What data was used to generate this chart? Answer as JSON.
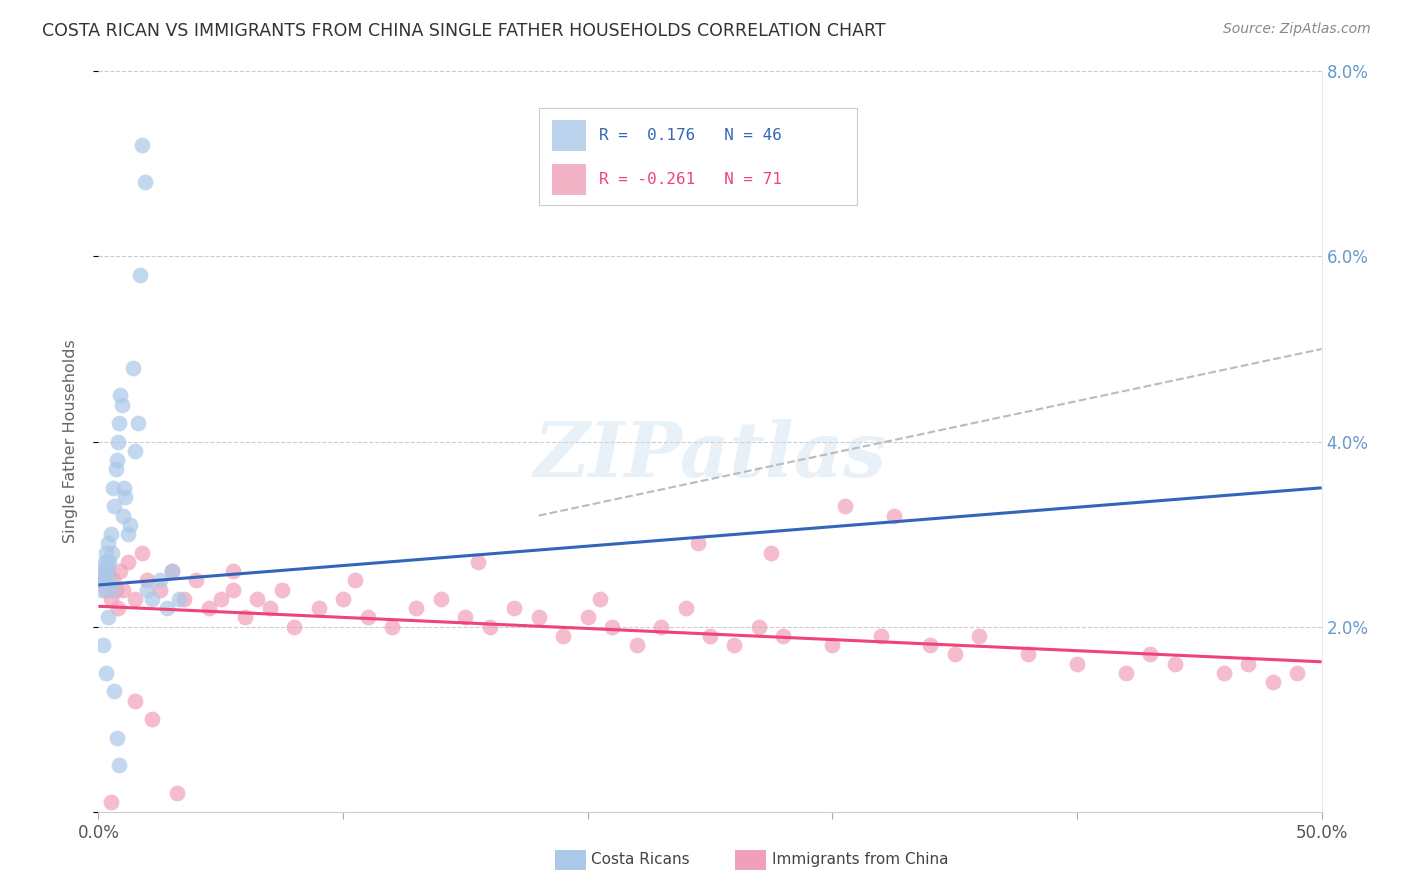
{
  "title": "COSTA RICAN VS IMMIGRANTS FROM CHINA SINGLE FATHER HOUSEHOLDS CORRELATION CHART",
  "source": "Source: ZipAtlas.com",
  "ylabel": "Single Father Households",
  "xlim": [
    0,
    50
  ],
  "ylim": [
    0,
    8.0
  ],
  "watermark": "ZIPatlas",
  "blue_scatter_x": [
    0.15,
    0.2,
    0.25,
    0.3,
    0.35,
    0.4,
    0.45,
    0.5,
    0.55,
    0.6,
    0.65,
    0.7,
    0.75,
    0.8,
    0.85,
    0.9,
    0.95,
    1.0,
    1.05,
    1.1,
    1.2,
    1.3,
    1.4,
    1.5,
    1.6,
    1.7,
    1.8,
    1.9,
    2.0,
    2.2,
    2.5,
    2.8,
    3.0,
    3.3,
    0.1,
    0.2,
    0.3,
    0.4,
    0.15,
    0.25,
    0.35,
    0.45,
    0.55,
    0.65,
    0.75,
    0.85
  ],
  "blue_scatter_y": [
    2.6,
    2.5,
    2.7,
    2.8,
    2.6,
    2.9,
    2.7,
    3.0,
    2.8,
    3.5,
    3.3,
    3.7,
    3.8,
    4.0,
    4.2,
    4.5,
    4.4,
    3.2,
    3.5,
    3.4,
    3.0,
    3.1,
    4.8,
    3.9,
    4.2,
    5.8,
    7.2,
    6.8,
    2.4,
    2.3,
    2.5,
    2.2,
    2.6,
    2.3,
    2.5,
    1.8,
    1.5,
    2.1,
    2.4,
    2.6,
    2.7,
    2.5,
    2.4,
    1.3,
    0.8,
    0.5
  ],
  "pink_scatter_x": [
    0.2,
    0.3,
    0.4,
    0.5,
    0.6,
    0.7,
    0.8,
    0.9,
    1.0,
    1.2,
    1.5,
    1.8,
    2.0,
    2.5,
    3.0,
    3.5,
    4.0,
    4.5,
    5.0,
    5.5,
    6.0,
    6.5,
    7.0,
    7.5,
    8.0,
    9.0,
    10.0,
    11.0,
    12.0,
    13.0,
    14.0,
    15.0,
    16.0,
    17.0,
    18.0,
    19.0,
    20.0,
    21.0,
    22.0,
    23.0,
    24.0,
    25.0,
    26.0,
    27.0,
    28.0,
    30.0,
    32.0,
    34.0,
    35.0,
    36.0,
    38.0,
    40.0,
    42.0,
    43.0,
    44.0,
    46.0,
    47.0,
    48.0,
    49.0,
    30.5,
    32.5,
    24.5,
    27.5,
    3.2,
    2.2,
    1.5,
    0.5,
    5.5,
    10.5,
    15.5,
    20.5
  ],
  "pink_scatter_y": [
    2.5,
    2.4,
    2.6,
    2.3,
    2.5,
    2.4,
    2.2,
    2.6,
    2.4,
    2.7,
    2.3,
    2.8,
    2.5,
    2.4,
    2.6,
    2.3,
    2.5,
    2.2,
    2.3,
    2.4,
    2.1,
    2.3,
    2.2,
    2.4,
    2.0,
    2.2,
    2.3,
    2.1,
    2.0,
    2.2,
    2.3,
    2.1,
    2.0,
    2.2,
    2.1,
    1.9,
    2.1,
    2.0,
    1.8,
    2.0,
    2.2,
    1.9,
    1.8,
    2.0,
    1.9,
    1.8,
    1.9,
    1.8,
    1.7,
    1.9,
    1.7,
    1.6,
    1.5,
    1.7,
    1.6,
    1.5,
    1.6,
    1.4,
    1.5,
    3.3,
    3.2,
    2.9,
    2.8,
    0.2,
    1.0,
    1.2,
    0.1,
    2.6,
    2.5,
    2.7,
    2.3
  ],
  "blue_line_x": [
    0,
    50
  ],
  "blue_line_y": [
    2.45,
    3.5
  ],
  "pink_line_x": [
    0,
    50
  ],
  "pink_line_y": [
    2.22,
    1.62
  ],
  "dashed_line_x": [
    18,
    50
  ],
  "dashed_line_y": [
    3.2,
    5.0
  ],
  "blue_scatter_color": "#aac8e8",
  "pink_scatter_color": "#f0a0b8",
  "blue_line_color": "#3366bb",
  "pink_line_color": "#ee4477",
  "dashed_line_color": "#bbbbbb",
  "background_color": "#ffffff",
  "grid_color": "#cccccc",
  "title_color": "#333333",
  "right_axis_color": "#6699cc",
  "legend_blue_color": "#aac8e8",
  "legend_pink_color": "#f0a0b8",
  "legend_text_color": "#3366bb",
  "legend_neg_text_color": "#ee4477"
}
